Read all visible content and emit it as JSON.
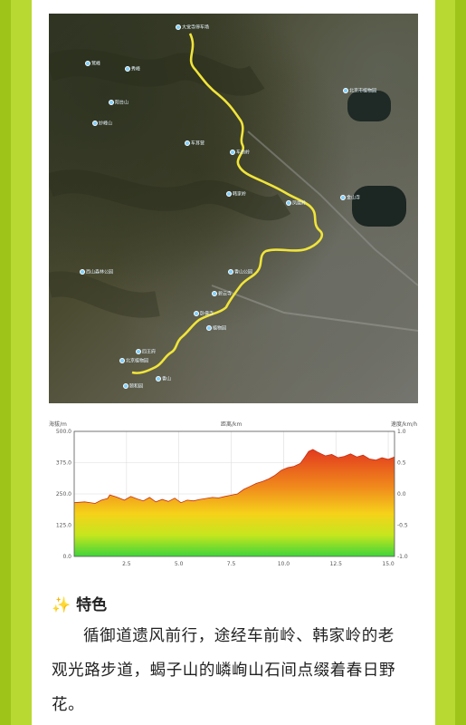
{
  "map": {
    "pois": [
      {
        "label": "大觉寺停车场"
      },
      {
        "label": "鹫峰"
      },
      {
        "label": "秀峰"
      },
      {
        "label": "北京市植物园"
      },
      {
        "label": "阳台山"
      },
      {
        "label": "妙峰山"
      },
      {
        "label": "车耳营"
      },
      {
        "label": "车前岭"
      },
      {
        "label": "韩家岭"
      },
      {
        "label": "凤凰岭"
      },
      {
        "label": "金山寺"
      },
      {
        "label": "西山森林公园"
      },
      {
        "label": "香山公园"
      },
      {
        "label": "碧云寺"
      },
      {
        "label": "卧佛寺"
      },
      {
        "label": "植物园"
      },
      {
        "label": "四王府"
      },
      {
        "label": "北京植物园"
      },
      {
        "label": "香山"
      },
      {
        "label": "颐和园"
      }
    ]
  },
  "chart_data": {
    "type": "area",
    "title": "",
    "xlabel": "",
    "ylabel": "",
    "left_axis_label": "海拔/m",
    "center_axis_label": "距离/km",
    "right_axis_label": "速度/km/h",
    "ylim": [
      0,
      500
    ],
    "y2lim": [
      -1.0,
      1.0
    ],
    "xlim": [
      0,
      15.3
    ],
    "y_ticks": [
      "500.0",
      "375.0",
      "250.0",
      "125.0",
      "0.0"
    ],
    "y2_ticks": [
      "1.0",
      "0.5",
      "0.0",
      "-0.5",
      "-1.0"
    ],
    "x_ticks": [
      "2.5",
      "5.0",
      "7.5",
      "10.0",
      "12.5",
      "15.0"
    ],
    "x_tick_values": [
      2.5,
      5.0,
      7.5,
      10.0,
      12.5,
      15.0
    ],
    "grid": true,
    "series": [
      {
        "x": [
          0,
          0.5,
          1.0,
          1.3,
          1.6,
          1.7,
          2.0,
          2.4,
          2.7,
          3.0,
          3.3,
          3.6,
          3.9,
          4.2,
          4.5,
          4.8,
          5.1,
          5.4,
          5.7,
          6.0,
          6.3,
          6.6,
          6.9,
          7.2,
          7.5,
          7.8,
          8.1,
          8.4,
          8.7,
          9.0,
          9.3,
          9.6,
          9.9,
          10.2,
          10.5,
          10.8,
          11.0,
          11.2,
          11.4,
          11.6,
          11.8,
          12.0,
          12.3,
          12.6,
          12.9,
          13.2,
          13.5,
          13.8,
          14.1,
          14.4,
          14.7,
          15.0,
          15.3
        ],
        "y": [
          215,
          218,
          212,
          225,
          232,
          246,
          238,
          225,
          240,
          230,
          222,
          236,
          218,
          228,
          220,
          233,
          215,
          225,
          222,
          228,
          232,
          236,
          234,
          240,
          245,
          250,
          268,
          280,
          292,
          300,
          310,
          325,
          345,
          355,
          360,
          372,
          395,
          420,
          428,
          418,
          410,
          402,
          408,
          395,
          400,
          410,
          398,
          405,
          390,
          385,
          395,
          388,
          398
        ]
      }
    ]
  },
  "section": {
    "icon": "sparkles-icon",
    "title": "特色",
    "text": "循御道遗风前行，途经车前岭、韩家岭的老观光路步道，蝎子山的嶙峋山石间点缀着春日野花。"
  }
}
